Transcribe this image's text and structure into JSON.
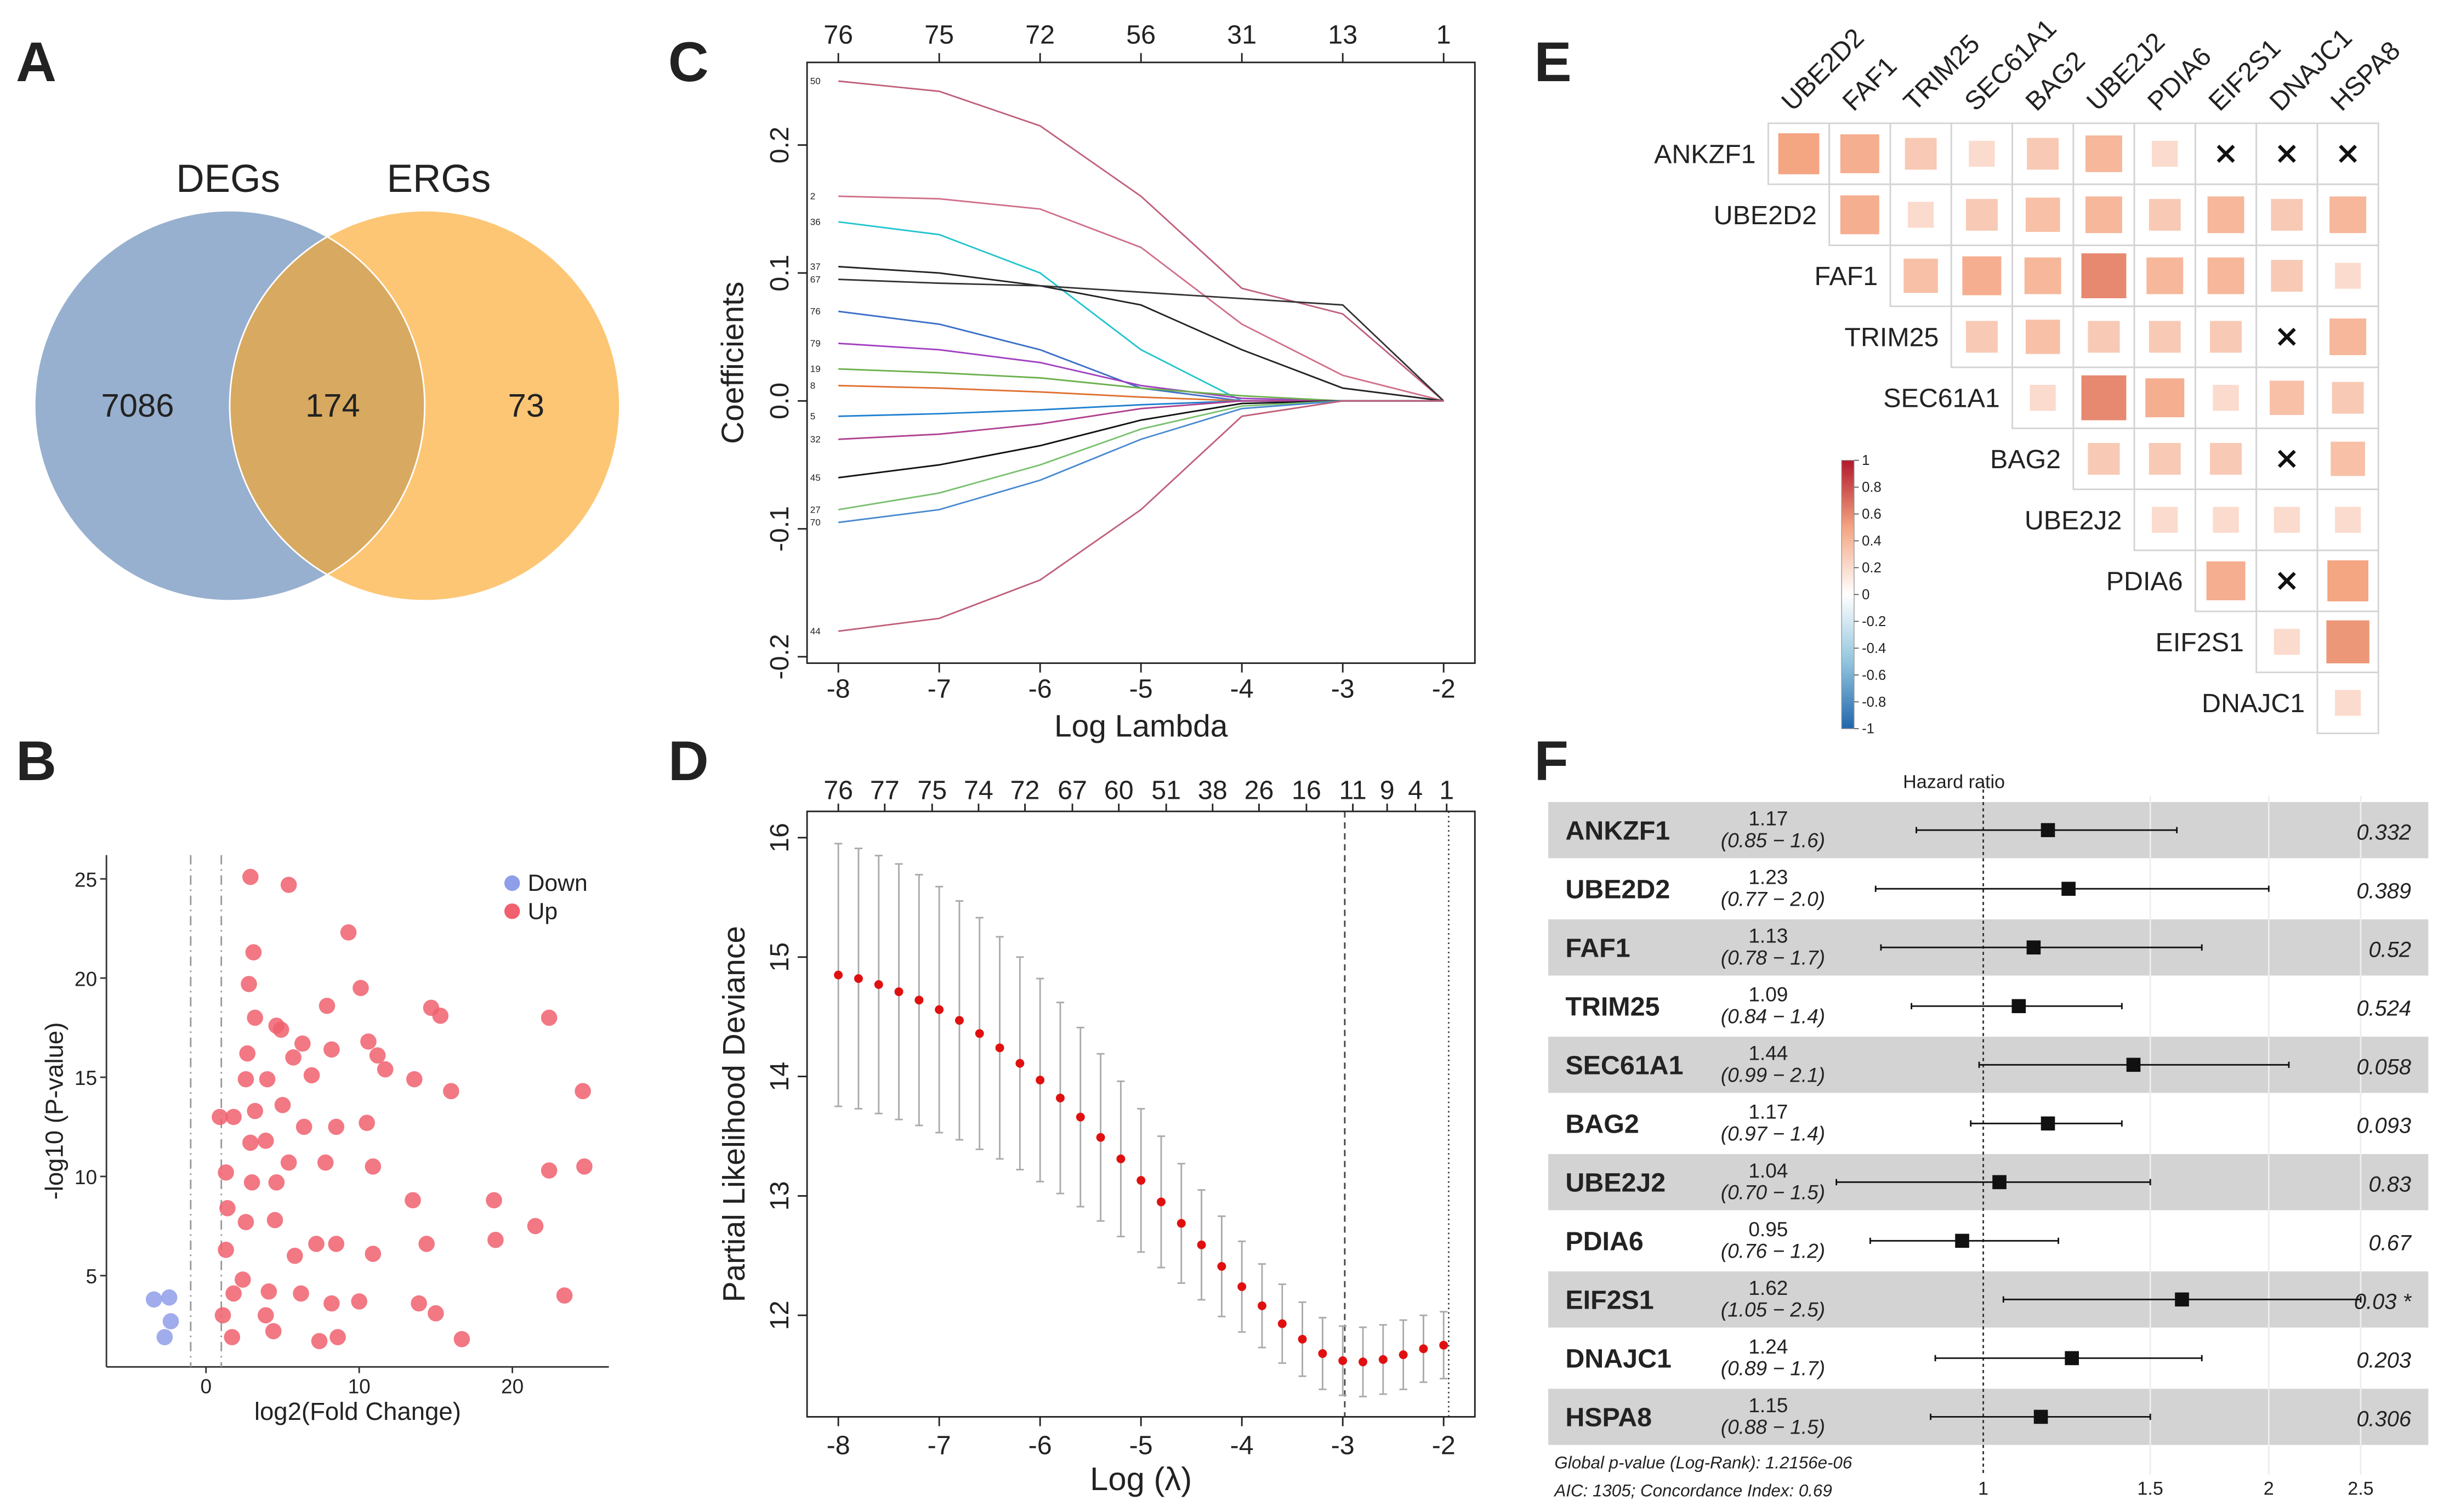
{
  "chart_data": [
    {
      "type": "venn",
      "panel": "A",
      "sets": [
        {
          "name": "DEGs",
          "color": "#98b0cf"
        },
        {
          "name": "ERGs",
          "color": "#fdc675"
        }
      ],
      "overlap_color": "#d8a960",
      "values": [
        7086,
        174,
        73
      ]
    },
    {
      "type": "scatter",
      "panel": "B",
      "xlabel": "log2(Fold Change)",
      "ylabel": "-log10 (P-value)",
      "xlim": [
        -6.5,
        26.3
      ],
      "ylim": [
        0.4,
        26.2
      ],
      "xticks": [
        0,
        10,
        20
      ],
      "yticks": [
        5,
        10,
        15,
        20,
        25
      ],
      "vlines": [
        -1,
        1
      ],
      "legend": "top-right",
      "series": [
        {
          "name": "Down",
          "color": "#8f9ee8",
          "x": [
            -3.4,
            -2.4,
            -2.3,
            -2.7
          ],
          "y": [
            3.8,
            3.9,
            2.7,
            1.9
          ]
        },
        {
          "name": "Up",
          "color": "#f0606e",
          "x": [
            2.9,
            5.4,
            9.3,
            3.1,
            2.8,
            10.1,
            7.9,
            3.2,
            4.6,
            4.9,
            14.7,
            15.3,
            22.4,
            6.3,
            10.6,
            11.2,
            2.7,
            8.2,
            5.7,
            4.0,
            2.6,
            11.7,
            13.6,
            6.9,
            16.0,
            24.6,
            0.9,
            1.8,
            3.2,
            5.0,
            6.4,
            8.5,
            10.5,
            2.9,
            3.9,
            5.4,
            1.3,
            7.8,
            10.9,
            22.4,
            24.7,
            3.0,
            4.6,
            13.5,
            18.8,
            21.5,
            18.9,
            1.4,
            2.6,
            4.5,
            7.2,
            8.5,
            5.8,
            10.9,
            14.4,
            1.3,
            2.4,
            4.1,
            1.8,
            6.2,
            8.2,
            10.0,
            13.9,
            15.0,
            23.4,
            1.7,
            4.4,
            7.4,
            8.6,
            16.7,
            3.9,
            1.1
          ],
          "y": [
            25.1,
            24.7,
            22.3,
            21.3,
            19.7,
            19.5,
            18.6,
            18.0,
            17.6,
            17.4,
            18.5,
            18.1,
            18.0,
            16.7,
            16.8,
            16.1,
            16.2,
            16.4,
            16.0,
            14.9,
            14.9,
            15.4,
            14.9,
            15.1,
            14.3,
            14.3,
            13.0,
            13.0,
            13.3,
            13.6,
            12.5,
            12.5,
            12.7,
            11.7,
            11.8,
            10.7,
            10.2,
            10.7,
            10.5,
            10.3,
            10.5,
            9.7,
            9.7,
            8.8,
            8.8,
            7.5,
            6.8,
            8.4,
            7.7,
            7.8,
            6.6,
            6.6,
            6.0,
            6.1,
            6.6,
            6.3,
            4.8,
            4.2,
            4.1,
            4.1,
            3.6,
            3.7,
            3.6,
            3.1,
            4.0,
            1.9,
            2.2,
            1.7,
            1.9,
            1.8,
            3.0,
            3.0
          ]
        }
      ]
    },
    {
      "type": "paths",
      "panel": "C",
      "xlabel": "Log Lambda",
      "ylabel": "Coefficients",
      "xlim": [
        -8.31,
        -1.69
      ],
      "ylim": [
        -0.205,
        0.2646
      ],
      "xticks": [
        -8,
        -7,
        -6,
        -5,
        -4,
        -3,
        -2
      ],
      "yticks": [
        -0.2,
        -0.1,
        {
          "value": 0,
          "label": "0.0"
        },
        0.1,
        0.2
      ],
      "top_ticks": [
        {
          "value": -8,
          "label": "76"
        },
        {
          "value": -7,
          "label": "75"
        },
        {
          "value": -6,
          "label": "72"
        },
        {
          "value": -5,
          "label": "56"
        },
        {
          "value": -4,
          "label": "31"
        },
        {
          "value": -3,
          "label": "13"
        },
        {
          "value": -2,
          "label": "1"
        }
      ],
      "x": [
        -8,
        -7,
        -6,
        -5,
        -4,
        -3,
        -2
      ],
      "series": [
        {
          "name": "50",
          "color": "#c0607a",
          "values": [
            0.25,
            0.242,
            0.215,
            0.16,
            0.088,
            0.068,
            0
          ]
        },
        {
          "name": "2",
          "color": "#d0708a",
          "values": [
            0.16,
            0.158,
            0.15,
            0.12,
            0.06,
            0.02,
            0
          ]
        },
        {
          "name": "36",
          "color": "#22c4d0",
          "values": [
            0.14,
            0.13,
            0.1,
            0.04,
            0,
            0,
            0
          ]
        },
        {
          "name": "37",
          "color": "#222222",
          "values": [
            0.105,
            0.1,
            0.09,
            0.075,
            0.04,
            0.01,
            0
          ]
        },
        {
          "name": "67",
          "color": "#333333",
          "values": [
            0.095,
            0.092,
            0.09,
            0.085,
            0.08,
            0.075,
            0
          ]
        },
        {
          "name": "76",
          "color": "#3c6fc8",
          "values": [
            0.07,
            0.06,
            0.04,
            0.01,
            0,
            0,
            0
          ]
        },
        {
          "name": "79",
          "color": "#a040c0",
          "values": [
            0.045,
            0.04,
            0.03,
            0.012,
            0.002,
            0,
            0
          ]
        },
        {
          "name": "19",
          "color": "#6ab04c",
          "values": [
            0.025,
            0.022,
            0.018,
            0.01,
            0.004,
            0,
            0
          ]
        },
        {
          "name": "8",
          "color": "#e07030",
          "values": [
            0.012,
            0.01,
            0.007,
            0.003,
            0,
            0,
            0
          ]
        },
        {
          "name": "5",
          "color": "#2080d0",
          "values": [
            -0.012,
            -0.01,
            -0.007,
            -0.003,
            0,
            0,
            0
          ]
        },
        {
          "name": "32",
          "color": "#b04090",
          "values": [
            -0.03,
            -0.026,
            -0.018,
            -0.006,
            0,
            0,
            0
          ]
        },
        {
          "name": "45",
          "color": "#111111",
          "values": [
            -0.06,
            -0.05,
            -0.035,
            -0.015,
            -0.002,
            0,
            0
          ]
        },
        {
          "name": "27",
          "color": "#7ac070",
          "values": [
            -0.085,
            -0.072,
            -0.05,
            -0.022,
            -0.004,
            0,
            0
          ]
        },
        {
          "name": "70",
          "color": "#4a8ad0",
          "values": [
            -0.095,
            -0.085,
            -0.062,
            -0.03,
            -0.006,
            0,
            0
          ]
        },
        {
          "name": "44",
          "color": "#c0607a",
          "values": [
            -0.18,
            -0.17,
            -0.14,
            -0.085,
            -0.012,
            0,
            0
          ]
        }
      ]
    },
    {
      "type": "errorbar",
      "panel": "D",
      "xlabel": "Log (λ)",
      "ylabel": "Partial Likelihood Deviance",
      "xlim": [
        -8.31,
        -1.69
      ],
      "ylim": [
        11.15,
        16.22
      ],
      "xticks": [
        -8,
        -7,
        -6,
        -5,
        -4,
        -3,
        -2
      ],
      "yticks": [
        12,
        13,
        14,
        15,
        16
      ],
      "color": "#e01010",
      "vlines": [
        -2.98,
        -1.95
      ],
      "top_ticks": [
        {
          "value": -8,
          "label": "76"
        },
        {
          "value": -7.54,
          "label": "77"
        },
        {
          "value": -7.07,
          "label": "75"
        },
        {
          "value": -6.61,
          "label": "74"
        },
        {
          "value": -6.15,
          "label": "72"
        },
        {
          "value": -5.68,
          "label": "67"
        },
        {
          "value": -5.22,
          "label": "60"
        },
        {
          "value": -4.75,
          "label": "51"
        },
        {
          "value": -4.29,
          "label": "38"
        },
        {
          "value": -3.83,
          "label": "26"
        },
        {
          "value": -3.36,
          "label": "16"
        },
        {
          "value": -2.9,
          "label": "11"
        },
        {
          "value": -2.56,
          "label": "9"
        },
        {
          "value": -2.28,
          "label": "4"
        },
        {
          "value": -1.97,
          "label": "1"
        }
      ],
      "x": [
        -8.0,
        -7.8,
        -7.6,
        -7.4,
        -7.2,
        -7.0,
        -6.8,
        -6.6,
        -6.4,
        -6.2,
        -6.0,
        -5.8,
        -5.6,
        -5.4,
        -5.2,
        -5.0,
        -4.8,
        -4.6,
        -4.4,
        -4.2,
        -4.0,
        -3.8,
        -3.6,
        -3.4,
        -3.2,
        -3.0,
        -2.8,
        -2.6,
        -2.4,
        -2.2,
        -2.0
      ],
      "values": [
        14.85,
        14.82,
        14.77,
        14.71,
        14.64,
        14.56,
        14.47,
        14.36,
        14.24,
        14.11,
        13.97,
        13.82,
        13.66,
        13.49,
        13.31,
        13.13,
        12.95,
        12.77,
        12.59,
        12.41,
        12.24,
        12.08,
        11.93,
        11.8,
        11.68,
        11.62,
        11.61,
        11.63,
        11.67,
        11.72,
        11.75
      ],
      "errors": [
        1.1,
        1.09,
        1.08,
        1.07,
        1.05,
        1.03,
        1.0,
        0.97,
        0.93,
        0.89,
        0.85,
        0.8,
        0.75,
        0.7,
        0.65,
        0.6,
        0.55,
        0.5,
        0.46,
        0.42,
        0.38,
        0.35,
        0.33,
        0.31,
        0.3,
        0.29,
        0.29,
        0.29,
        0.29,
        0.28,
        0.28
      ]
    },
    {
      "type": "corr",
      "panel": "E",
      "rows": [
        "ANKZF1",
        "UBE2D2",
        "FAF1",
        "TRIM25",
        "SEC61A1",
        "BAG2",
        "UBE2J2",
        "PDIA6",
        "EIF2S1",
        "DNAJC1"
      ],
      "columns": [
        "UBE2D2",
        "FAF1",
        "TRIM25",
        "SEC61A1",
        "BAG2",
        "UBE2J2",
        "PDIA6",
        "EIF2S1",
        "DNAJC1",
        "HSPA8"
      ],
      "values": [
        [
          0.5,
          0.45,
          0.3,
          0.2,
          0.3,
          0.4,
          0.2,
          null,
          null,
          null
        ],
        [
          0.45,
          0.2,
          0.3,
          0.35,
          0.4,
          0.3,
          0.4,
          0.3,
          0.4
        ],
        [
          0.35,
          0.45,
          0.4,
          0.6,
          0.4,
          0.4,
          0.3,
          0.2
        ],
        [
          0.3,
          0.35,
          0.3,
          0.3,
          0.3,
          null,
          0.4
        ],
        [
          0.2,
          0.6,
          0.45,
          0.2,
          0.35,
          0.3
        ],
        [
          0.3,
          0.3,
          0.3,
          null,
          0.35
        ],
        [
          0.2,
          0.2,
          0.2,
          0.2
        ],
        [
          0.45,
          null,
          0.5
        ],
        [
          0.2,
          0.55
        ],
        [
          0.2
        ]
      ],
      "clim": [
        -1,
        1
      ],
      "colors": [
        "#2166ac",
        "#92c5de",
        "#ffffff",
        "#f4a582",
        "#b2182b"
      ],
      "ticks": [
        1,
        0.8,
        0.6,
        0.4,
        0.2,
        0,
        -0.2,
        -0.4,
        -0.6,
        -0.8,
        -1
      ]
    },
    {
      "type": "forest",
      "panel": "F",
      "xlabel": "Hazard ratio",
      "log": true,
      "xlim": [
        0.68,
        2.6
      ],
      "xticks": [
        1,
        1.5,
        2,
        2.5
      ],
      "refline": 1,
      "rows": [
        "ANKZF1",
        "UBE2D2",
        "FAF1",
        "TRIM25",
        "SEC61A1",
        "BAG2",
        "UBE2J2",
        "PDIA6",
        "EIF2S1",
        "DNAJC1",
        "HSPA8"
      ],
      "hr": [
        1.17,
        1.23,
        1.13,
        1.09,
        1.44,
        1.17,
        1.04,
        0.95,
        1.62,
        1.24,
        1.15
      ],
      "lower": [
        0.85,
        0.77,
        0.78,
        0.84,
        0.99,
        0.97,
        0.7,
        0.76,
        1.05,
        0.89,
        0.88
      ],
      "upper": [
        1.6,
        2.0,
        1.7,
        1.4,
        2.1,
        1.4,
        1.5,
        1.2,
        2.5,
        1.7,
        1.5
      ],
      "ci_labels": [
        "(0.85 − 1.6)",
        "(0.77 − 2.0)",
        "(0.78 − 1.7)",
        "(0.84 − 1.4)",
        "(0.99 − 2.1)",
        "(0.97 − 1.4)",
        "(0.70 − 1.5)",
        "(0.76 − 1.2)",
        "(1.05 − 2.5)",
        "(0.89 − 1.7)",
        "(0.88 − 1.5)"
      ],
      "p": [
        0.332,
        0.389,
        0.52,
        0.524,
        0.058,
        0.093,
        0.83,
        0.67,
        {
          "value": 0.03,
          "label": "0.03 *"
        },
        0.203,
        0.306
      ],
      "notes": [
        "Global p-value (Log-Rank): 1.2156e-06",
        "AIC: 1305; Concordance Index: 0.69"
      ]
    }
  ]
}
